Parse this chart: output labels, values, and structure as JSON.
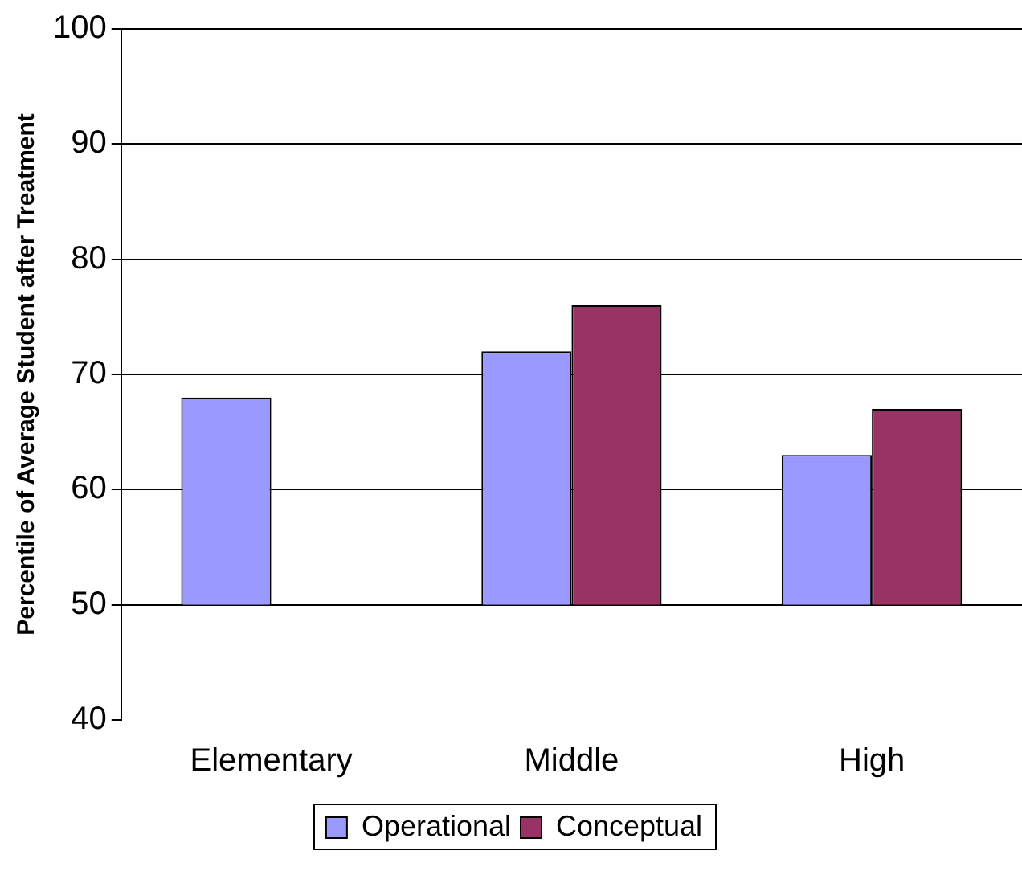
{
  "chart_data": {
    "type": "bar",
    "ylabel": "Percentile of Average Student after Treatment",
    "categories": [
      "Elementary",
      "Middle",
      "High"
    ],
    "series": [
      {
        "name": "Operational",
        "color": "#9999ff",
        "values": [
          18,
          22,
          13
        ],
        "base": [
          50,
          50,
          50
        ]
      },
      {
        "name": "Conceptual",
        "color": "#993366",
        "values": [
          null,
          26,
          17
        ],
        "base": [
          null,
          50,
          50
        ]
      }
    ],
    "ylim": [
      40,
      100
    ],
    "yticks": [
      40,
      50,
      60,
      70,
      80,
      90,
      100
    ],
    "grid": "y",
    "legend": "bottom"
  }
}
